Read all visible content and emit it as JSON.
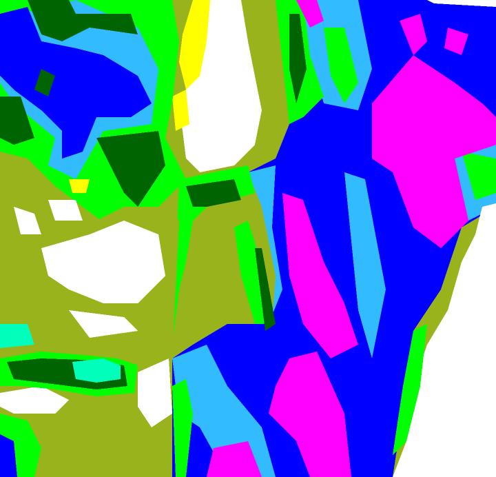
{
  "palette": {
    "water_deep": "#0000ff",
    "magenta": "#ff00ff",
    "olive": "#99b31c",
    "green": "#00ff00",
    "dark_green": "#006400",
    "light_blue": "#33bbff",
    "aquamarine": "#00ffbb",
    "yellow": "#ffff00",
    "white": "#ffffff"
  }
}
